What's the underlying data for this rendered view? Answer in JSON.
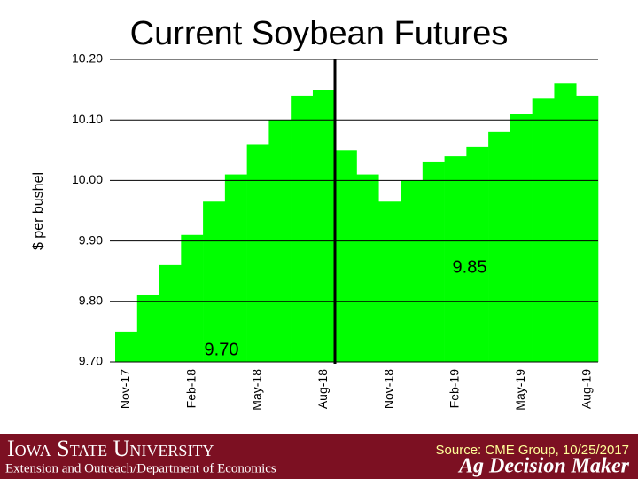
{
  "chart_data": {
    "type": "bar",
    "title": "Current Soybean Futures",
    "y_label": "$ per bushel",
    "categories": [
      "Nov-17",
      null,
      null,
      "Feb-18",
      null,
      null,
      "May-18",
      null,
      null,
      "Aug-18",
      null,
      null,
      "Nov-18",
      null,
      null,
      "Feb-19",
      null,
      null,
      "May-19",
      null,
      null,
      "Aug-19"
    ],
    "values": [
      9.75,
      9.81,
      9.86,
      9.91,
      9.965,
      10.01,
      10.06,
      10.1,
      10.14,
      10.15,
      10.05,
      10.01,
      9.965,
      10.0,
      10.03,
      10.04,
      10.055,
      10.08,
      10.11,
      10.135,
      10.16,
      10.14
    ],
    "color": "#00ff00",
    "ylim": [
      9.7,
      10.2
    ],
    "yticks": [
      {
        "value": 9.7,
        "label": "9.70"
      },
      {
        "value": 9.8,
        "label": "9.80"
      },
      {
        "value": 9.9,
        "label": "9.90"
      },
      {
        "value": 10.0,
        "label": "10.00"
      },
      {
        "value": 10.1,
        "label": "10.10"
      },
      {
        "value": 10.2,
        "label": "10.20"
      }
    ],
    "grid": true,
    "annotations": [
      "9.70",
      "9.85"
    ]
  },
  "footer": {
    "university": "Iowa State University",
    "department": "Extension and Outreach/Department of Economics",
    "source": "Source: CME Group, 10/25/2017",
    "brand": "Ag Decision Maker"
  }
}
